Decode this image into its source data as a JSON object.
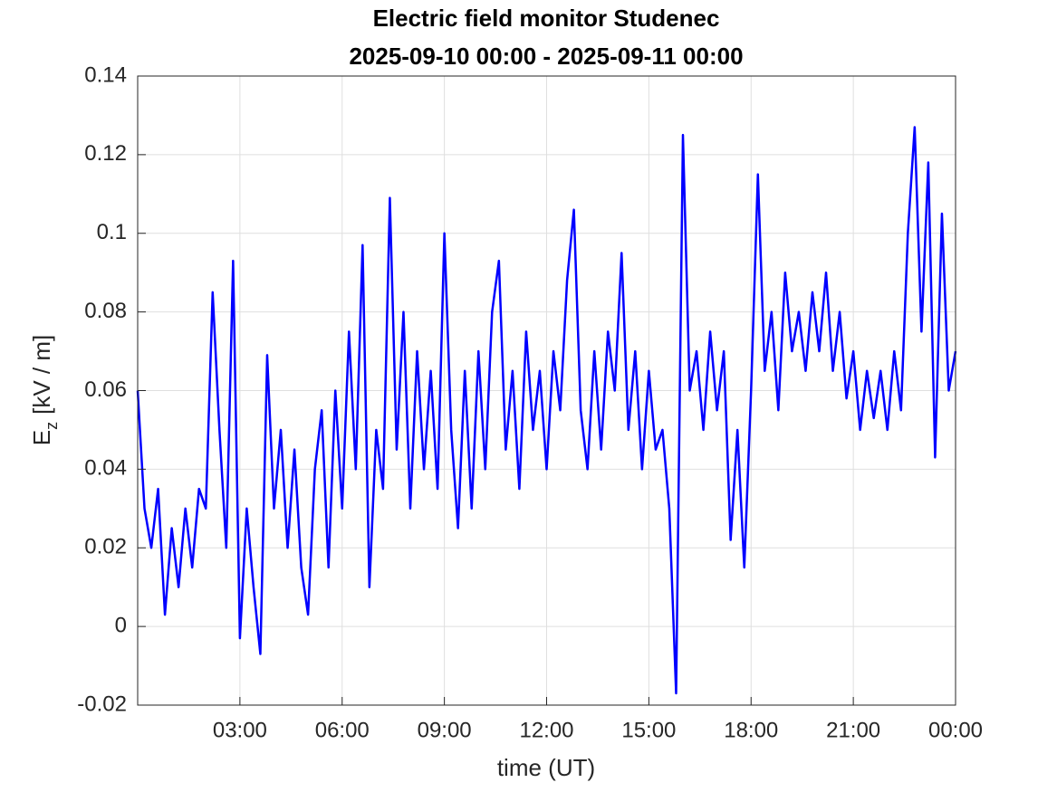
{
  "chart_data": {
    "type": "line",
    "title": "Electric field monitor Studenec",
    "subtitle": "2025-09-10 00:00 - 2025-09-11 00:00",
    "xlabel": "time (UT)",
    "ylabel": {
      "symbol": "E",
      "subscript": "z",
      "unit": "[kV / m]"
    },
    "x": [
      0,
      0.2,
      0.4,
      0.6,
      0.8,
      1,
      1.2,
      1.4,
      1.6,
      1.8,
      2,
      2.2,
      2.4,
      2.6,
      2.8,
      3,
      3.2,
      3.4,
      3.6,
      3.8,
      4,
      4.2,
      4.4,
      4.6,
      4.8,
      5,
      5.2,
      5.4,
      5.6,
      5.8,
      6,
      6.2,
      6.4,
      6.6,
      6.8,
      7,
      7.2,
      7.4,
      7.6,
      7.8,
      8,
      8.2,
      8.4,
      8.6,
      8.8,
      9,
      9.2,
      9.4,
      9.6,
      9.8,
      10,
      10.2,
      10.4,
      10.6,
      10.8,
      11,
      11.2,
      11.4,
      11.6,
      11.8,
      12,
      12.2,
      12.4,
      12.6,
      12.8,
      13,
      13.2,
      13.4,
      13.6,
      13.8,
      14,
      14.2,
      14.4,
      14.6,
      14.8,
      15,
      15.2,
      15.4,
      15.6,
      15.8,
      16,
      16.2,
      16.4,
      16.6,
      16.8,
      17,
      17.2,
      17.4,
      17.6,
      17.8,
      18,
      18.2,
      18.4,
      18.6,
      18.8,
      19,
      19.2,
      19.4,
      19.6,
      19.8,
      20,
      20.2,
      20.4,
      20.6,
      20.8,
      21,
      21.2,
      21.4,
      21.6,
      21.8,
      22,
      22.2,
      22.4,
      22.6,
      22.8,
      23,
      23.2,
      23.4,
      23.6,
      23.8,
      24
    ],
    "series": [
      {
        "color": "#0000ff",
        "values": [
          0.06,
          0.03,
          0.02,
          0.035,
          0.003,
          0.025,
          0.01,
          0.03,
          0.015,
          0.035,
          0.03,
          0.085,
          0.05,
          0.02,
          0.093,
          -0.003,
          0.03,
          0.01,
          -0.007,
          0.069,
          0.03,
          0.05,
          0.02,
          0.045,
          0.015,
          0.003,
          0.04,
          0.055,
          0.015,
          0.06,
          0.03,
          0.075,
          0.04,
          0.097,
          0.01,
          0.05,
          0.035,
          0.109,
          0.045,
          0.08,
          0.03,
          0.07,
          0.04,
          0.065,
          0.035,
          0.1,
          0.05,
          0.025,
          0.065,
          0.03,
          0.07,
          0.04,
          0.08,
          0.093,
          0.045,
          0.065,
          0.035,
          0.075,
          0.05,
          0.065,
          0.04,
          0.07,
          0.055,
          0.088,
          0.106,
          0.055,
          0.04,
          0.07,
          0.045,
          0.075,
          0.06,
          0.095,
          0.05,
          0.07,
          0.04,
          0.065,
          0.045,
          0.05,
          0.03,
          -0.017,
          0.125,
          0.06,
          0.07,
          0.05,
          0.075,
          0.055,
          0.07,
          0.022,
          0.05,
          0.015,
          0.06,
          0.115,
          0.065,
          0.08,
          0.055,
          0.09,
          0.07,
          0.08,
          0.065,
          0.085,
          0.07,
          0.09,
          0.065,
          0.08,
          0.058,
          0.07,
          0.05,
          0.065,
          0.053,
          0.065,
          0.05,
          0.07,
          0.055,
          0.1,
          0.127,
          0.075,
          0.118,
          0.043,
          0.105,
          0.06,
          0.07
        ]
      }
    ],
    "xlim": [
      0,
      24
    ],
    "xticks": [
      {
        "value": 3,
        "label": "03:00"
      },
      {
        "value": 6,
        "label": "06:00"
      },
      {
        "value": 9,
        "label": "09:00"
      },
      {
        "value": 12,
        "label": "12:00"
      },
      {
        "value": 15,
        "label": "15:00"
      },
      {
        "value": 18,
        "label": "18:00"
      },
      {
        "value": 21,
        "label": "21:00"
      },
      {
        "value": 24,
        "label": "00:00"
      }
    ],
    "ylim": [
      -0.02,
      0.14
    ],
    "yticks": [
      -0.02,
      0,
      0.02,
      0.04,
      0.06,
      0.08,
      0.1,
      0.12,
      0.14
    ],
    "grid": true
  }
}
